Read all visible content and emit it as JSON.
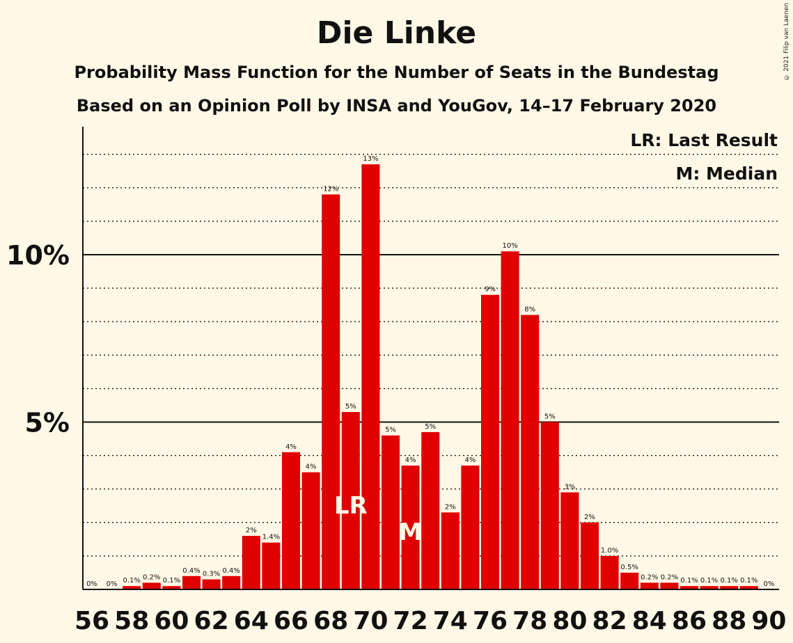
{
  "title": "Die Linke",
  "subtitle1": "Probability Mass Function for the Number of Seats in the Bundestag",
  "subtitle2": "Based on an Opinion Poll by INSA and YouGov, 14–17 February 2020",
  "copyright": "© 2021 Filip van Laenen",
  "legend": {
    "last_result": "LR: Last Result",
    "median": "M: Median"
  },
  "colors": {
    "bar": "#e00000",
    "background": "#fff8e6",
    "marker_text": "#fff8e6"
  },
  "chart_data": {
    "type": "bar",
    "x": [
      56,
      57,
      58,
      59,
      60,
      61,
      62,
      63,
      64,
      65,
      66,
      67,
      68,
      69,
      70,
      71,
      72,
      73,
      74,
      75,
      76,
      77,
      78,
      79,
      80,
      81,
      82,
      83,
      84,
      85,
      86,
      87,
      88,
      89,
      90
    ],
    "values": [
      0,
      0,
      0.1,
      0.2,
      0.1,
      0.4,
      0.3,
      0.4,
      1.6,
      1.4,
      4.1,
      3.5,
      11.8,
      5.3,
      12.7,
      4.6,
      3.7,
      4.7,
      2.3,
      3.7,
      8.8,
      10.1,
      8.2,
      5.0,
      2.9,
      2.0,
      1.0,
      0.5,
      0.2,
      0.2,
      0.1,
      0.1,
      0.1,
      0.1,
      0
    ],
    "labels": [
      "0%",
      "0%",
      "0.1%",
      "0.2%",
      "0.1%",
      "0.4%",
      "0.3%",
      "0.4%",
      "2%",
      "1.4%",
      "4%",
      "4%",
      "12%",
      "5%",
      "13%",
      "5%",
      "4%",
      "5%",
      "2%",
      "4%",
      "9%",
      "10%",
      "8%",
      "5%",
      "3%",
      "2%",
      "1.0%",
      "0.5%",
      "0.2%",
      "0.2%",
      "0.1%",
      "0.1%",
      "0.1%",
      "0.1%",
      "0%"
    ],
    "x_tick_labels": [
      "56",
      "58",
      "60",
      "62",
      "64",
      "66",
      "68",
      "70",
      "72",
      "74",
      "76",
      "78",
      "80",
      "82",
      "84",
      "86",
      "88",
      "90"
    ],
    "y_ticks": [
      {
        "value": 5,
        "label": "5%"
      },
      {
        "value": 10,
        "label": "10%"
      }
    ],
    "ylim": [
      0,
      13.8
    ],
    "minor_gridlines_every": 1,
    "markers": {
      "last_result": {
        "x": 69,
        "text": "LR"
      },
      "median": {
        "x": 72,
        "text": "M"
      }
    },
    "legend_position": "top-right"
  }
}
